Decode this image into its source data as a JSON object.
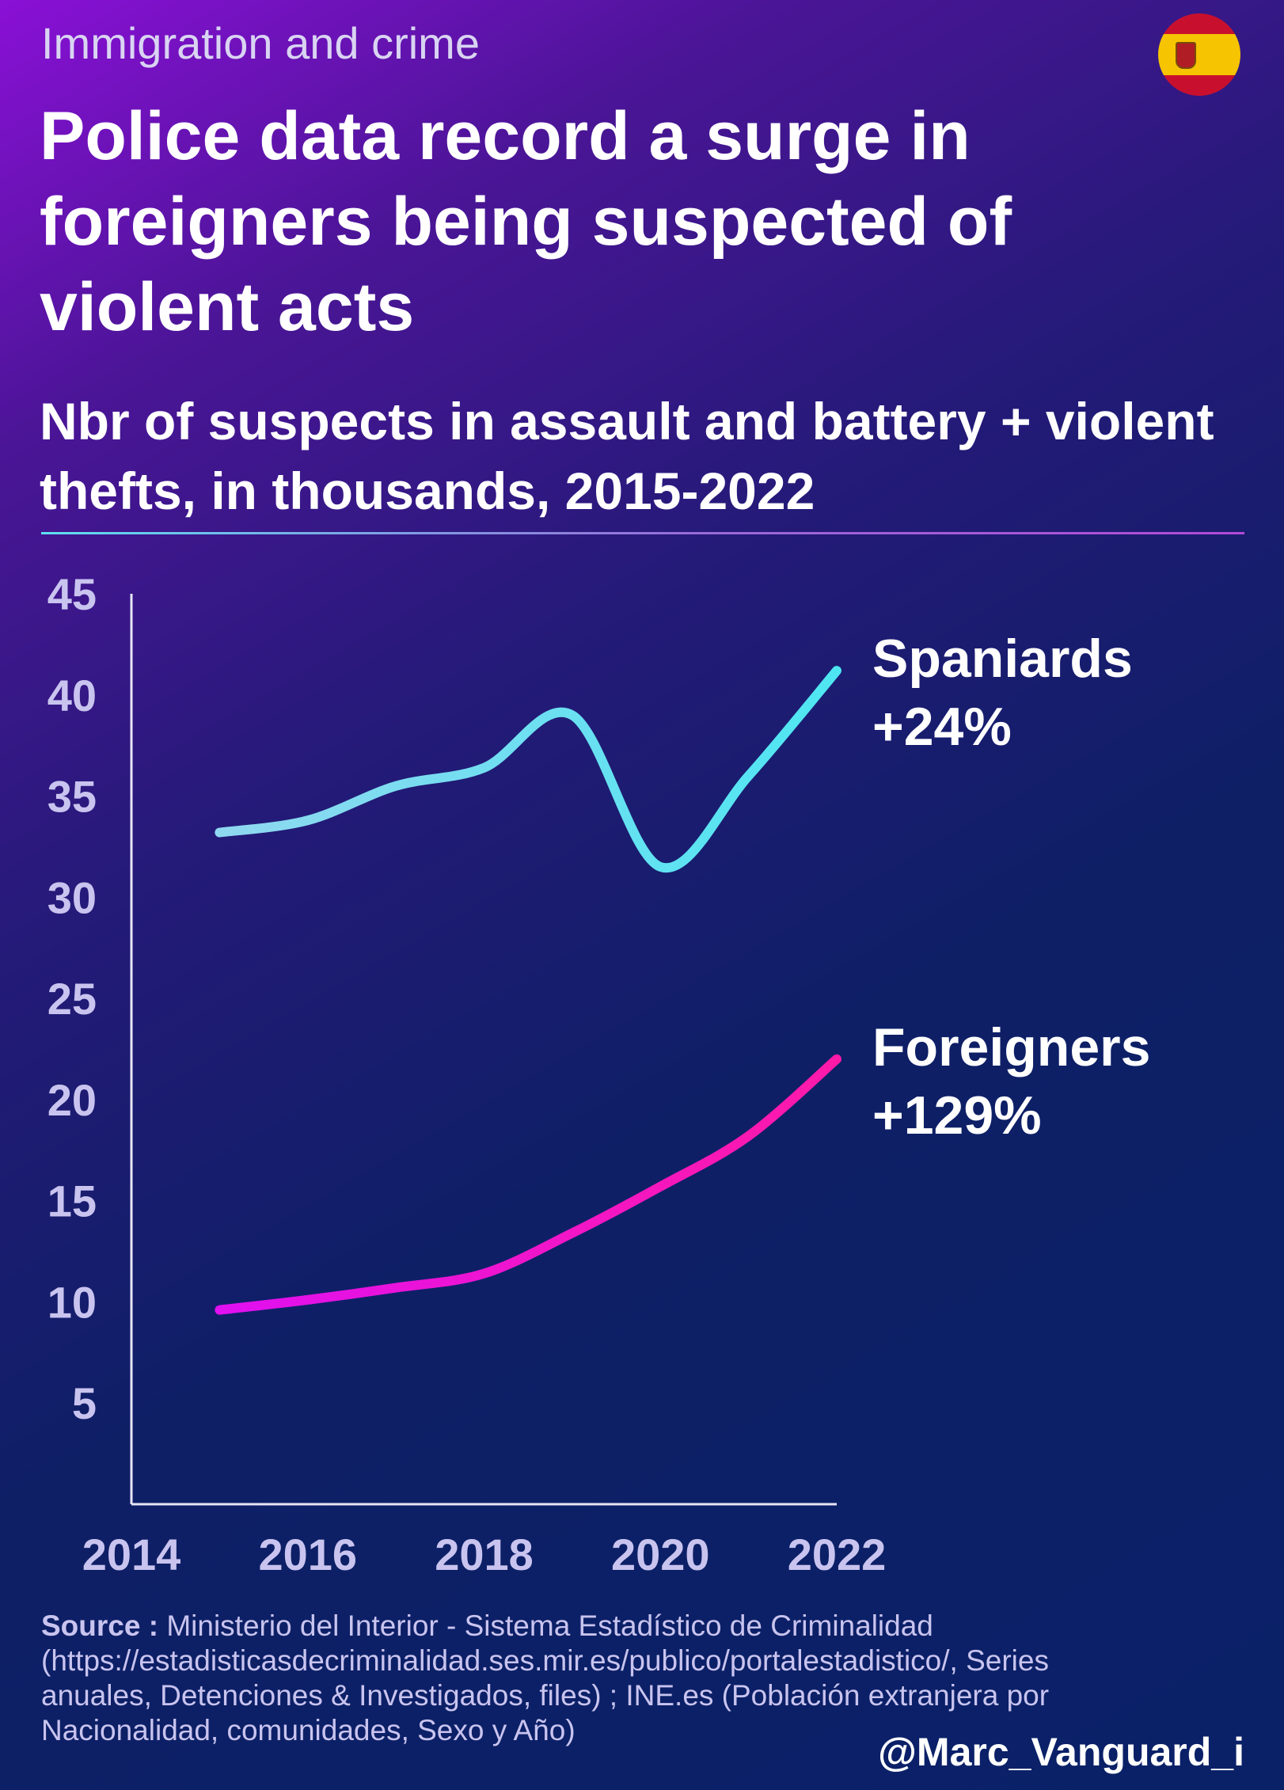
{
  "header": {
    "kicker": "Immigration and crime",
    "title": "Police data record a surge in foreigners being suspected of violent acts",
    "subtitle": "Nbr of suspects in assault and battery + violent thefts, in thousands, 2015-2022",
    "flag_icon": "spain-flag-icon"
  },
  "chart_data": {
    "type": "line",
    "title": "",
    "xlabel": "",
    "ylabel": "",
    "xlim": [
      2014,
      2022
    ],
    "ylim": [
      0,
      45
    ],
    "x_ticks": [
      "2014",
      "2016",
      "2018",
      "2020",
      "2022"
    ],
    "y_ticks": [
      "5",
      "10",
      "15",
      "20",
      "25",
      "30",
      "35",
      "40",
      "45"
    ],
    "x": [
      2015,
      2016,
      2017,
      2018,
      2019,
      2020,
      2021,
      2022
    ],
    "series": [
      {
        "name": "Spaniards",
        "change_label": "+24%",
        "color": "#4ee6f2",
        "values": [
          33.2,
          33.8,
          35.5,
          36.4,
          39.0,
          31.5,
          36.0,
          41.2
        ]
      },
      {
        "name": "Foreigners",
        "change_label": "+129%",
        "color": "#ff1aa8",
        "values": [
          9.6,
          10.1,
          10.7,
          11.4,
          13.4,
          15.7,
          18.2,
          22.0
        ]
      }
    ],
    "grid": false,
    "legend": "direct labels at line ends (right)"
  },
  "footer": {
    "source_label": "Source :",
    "source_text": "Ministerio del Interior - Sistema Estadístico de Criminalidad (https://estadisticasdecriminalidad.ses.mir.es/publico/portalestadistico/, Series anuales, Detenciones & Investigados, files) ; INE.es (Población extranjera por Nacionalidad, comunidades, Sexo y Año)",
    "handle": "@Marc_Vanguard_i"
  }
}
